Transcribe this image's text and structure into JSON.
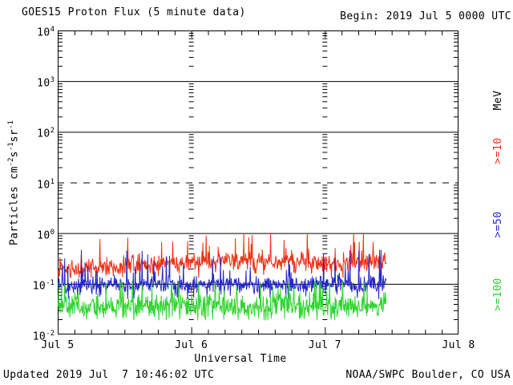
{
  "header": {
    "title": "GOES15 Proton Flux (5 minute data)",
    "begin_label": "Begin: 2019 Jul 5 0000 UTC"
  },
  "footer": {
    "updated": "Updated 2019 Jul  7 10:46:02 UTC",
    "source": "NOAA/SWPC Boulder, CO USA"
  },
  "colors": {
    "background": "#ffffff",
    "axis": "#000000",
    "series_ge10": "#f03014",
    "series_ge50": "#2626c8",
    "series_ge100": "#2fd42f"
  },
  "right_axis": {
    "unit": "MeV",
    "labels": [
      {
        "text": "MeV",
        "color": "#000000"
      },
      {
        "text": ">=10",
        "color": "#f03014"
      },
      {
        "text": ">=50",
        "color": "#2626c8"
      },
      {
        "text": ">=100",
        "color": "#2fd42f"
      }
    ]
  },
  "chart_data": {
    "type": "line",
    "title": "GOES15 Proton Flux (5 minute data)",
    "begin": "2019 Jul 5 0000 UTC",
    "updated": "2019 Jul 7 10:46:02 UTC",
    "cadence_minutes": 5,
    "xlabel": "Universal Time",
    "ylabel_plain": "Particles cm-2 s-1 sr-1",
    "ylabel_segments": [
      {
        "text": "Particles cm"
      },
      {
        "text": "-2",
        "sup": true
      },
      {
        "text": "s"
      },
      {
        "text": "-1",
        "sup": true
      },
      {
        "text": "sr"
      },
      {
        "text": "-1",
        "sup": true
      }
    ],
    "x_tick_labels": [
      "Jul 5",
      "Jul 6",
      "Jul 7",
      "Jul 8"
    ],
    "x_range_days": 3,
    "x_minor_tick_hours": 3,
    "y_scale": "log",
    "y_range_log": [
      -2,
      4
    ],
    "y_tick_exponents": [
      4,
      3,
      2,
      1,
      0,
      -1,
      -2
    ],
    "grid_solid_hlines_log": [
      3,
      2,
      0,
      -1
    ],
    "grid_dashed_hlines_log": [
      1
    ],
    "grid_day_columns_days": [
      1,
      2
    ],
    "right_axis_unit": "MeV",
    "samples_per_day": 288,
    "data_start_day": 0,
    "data_end_day": 2.462,
    "noise_seed": 20190707,
    "series": [
      {
        "label": ">=10",
        "energy_mev": ">=10",
        "color": "#f03014",
        "typical_flux": 0.22,
        "flux_range": [
          0.13,
          0.9
        ],
        "anchor_interval_hours": 6,
        "baseline_log_anchors": [
          -0.7,
          -0.66,
          -0.64,
          -0.62,
          -0.58,
          -0.55,
          -0.54,
          -0.57,
          -0.6,
          -0.57,
          -0.54,
          -0.52
        ],
        "noise_log_sigma": 0.09,
        "spike_probability": 0.06,
        "spike_log_boost": 0.45,
        "clip_log": [
          -0.88,
          0.0
        ]
      },
      {
        "label": ">=50",
        "energy_mev": ">=50",
        "color": "#2626c8",
        "typical_flux": 0.1,
        "flux_range": [
          0.05,
          0.42
        ],
        "anchor_interval_hours": 6,
        "baseline_log_anchors": [
          -1.04,
          -1.02,
          -1.04,
          -1.01,
          -1.03,
          -1.0,
          -1.02,
          -1.04,
          -1.01,
          -1.03,
          -1.0,
          -1.01
        ],
        "noise_log_sigma": 0.08,
        "spike_probability": 0.07,
        "spike_log_boost": 0.6,
        "clip_log": [
          -1.3,
          -0.33
        ]
      },
      {
        "label": ">=100",
        "energy_mev": ">=100",
        "color": "#2fd42f",
        "typical_flux": 0.038,
        "flux_range": [
          0.02,
          0.11
        ],
        "anchor_interval_hours": 6,
        "baseline_log_anchors": [
          -1.44,
          -1.47,
          -1.43,
          -1.45,
          -1.41,
          -1.43,
          -1.46,
          -1.42,
          -1.44,
          -1.45,
          -1.41,
          -1.42
        ],
        "noise_log_sigma": 0.12,
        "spike_probability": 0.06,
        "spike_log_boost": 0.55,
        "clip_log": [
          -1.72,
          -0.95
        ]
      }
    ]
  }
}
